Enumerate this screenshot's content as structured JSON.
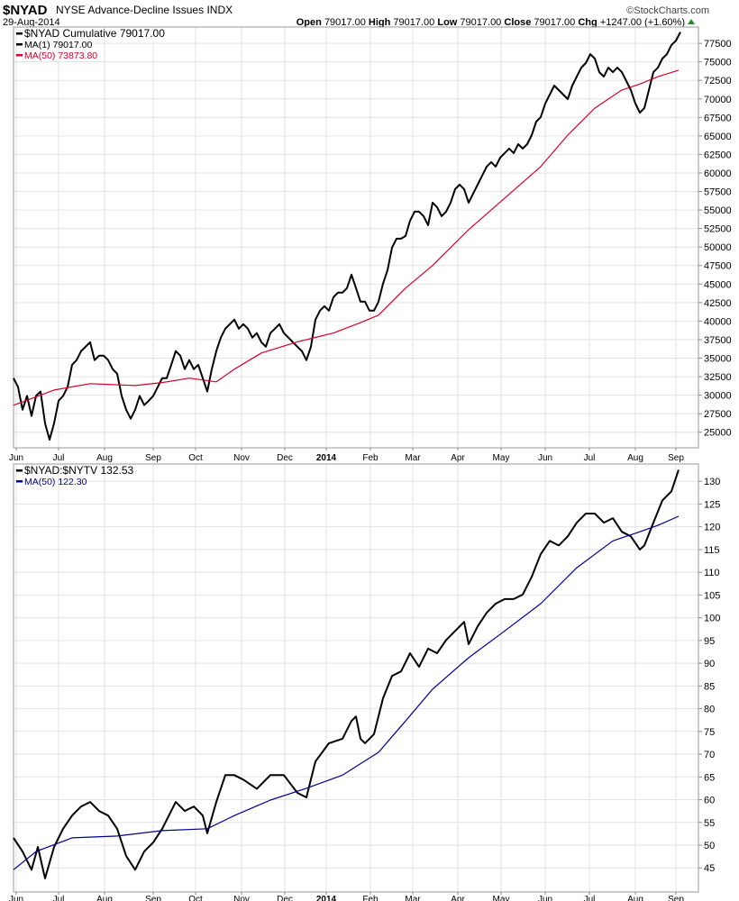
{
  "header": {
    "symbol": "$NYAD",
    "name": "NYSE Advance-Decline Issues",
    "exchange": "INDX",
    "date": "29-Aug-2014",
    "watermark": "©StockCharts.com",
    "open_label": "Open",
    "open": "79017.00",
    "high_label": "High",
    "high": "79017.00",
    "low_label": "Low",
    "low": "79017.00",
    "close_label": "Close",
    "close": "79017.00",
    "chg_label": "Chg",
    "chg": "+1247.00 (+1.60%)"
  },
  "colors": {
    "price": "#000000",
    "ma_top": "#d4002a",
    "ma_bottom": "#00008b",
    "up": "#2a8a2a"
  },
  "chart_data": [
    {
      "type": "line",
      "title": "$NYAD NYSE Advance-Decline Issues INDX",
      "legend": [
        "$NYAD Cumulative 79017.00",
        "MA(1) 79017.00",
        "MA(50) 73873.80"
      ],
      "legend_placement": "top-left",
      "grid": true,
      "ylim": [
        22900,
        79700
      ],
      "yticks": [
        25000,
        27500,
        30000,
        32500,
        35000,
        37500,
        40000,
        42500,
        45000,
        47500,
        50000,
        52500,
        55000,
        57500,
        60000,
        62500,
        65000,
        67500,
        70000,
        72500,
        75000,
        77500
      ],
      "xlim": [
        0,
        152
      ],
      "series": [
        {
          "name": "$NYAD Cumulative",
          "values": [
            32300,
            31100,
            28050,
            29900,
            27200,
            29900,
            30500,
            26200,
            24000,
            26200,
            29250,
            29900,
            31100,
            34100,
            34730,
            35950,
            36550,
            37160,
            34730,
            35340,
            35340,
            34730,
            33520,
            32900,
            29900,
            28050,
            26830,
            28050,
            29900,
            28660,
            29250,
            29900,
            31100,
            32300,
            32300,
            34100,
            35950,
            35340,
            33520,
            34730,
            33520,
            34100,
            32300,
            30500,
            33520,
            35950,
            37770,
            38980,
            39590,
            40200,
            38980,
            39590,
            38980,
            37770,
            38380,
            37160,
            36550,
            38380,
            38980,
            39590,
            38380,
            37770,
            37160,
            36550,
            35950,
            34730,
            36550,
            40200,
            41410,
            42020,
            41410,
            43240,
            43850,
            43850,
            44450,
            46280,
            44450,
            42630,
            42630,
            41410,
            41410,
            42630,
            45060,
            46880,
            49920,
            51130,
            51130,
            51500,
            53560,
            54780,
            54780,
            54170,
            52960,
            55990,
            55390,
            54170,
            54780,
            55990,
            57820,
            58430,
            57820,
            55990,
            57210,
            58430,
            59640,
            60860,
            61470,
            60860,
            62070,
            62680,
            63290,
            62680,
            63890,
            63290,
            63890,
            65110,
            66930,
            67540,
            69370,
            70580,
            71790,
            71190,
            70580,
            69970,
            71790,
            73010,
            74220,
            74830,
            76040,
            75440,
            73610,
            73010,
            74220,
            73610,
            74220,
            73610,
            72400,
            71190,
            69370,
            68150,
            68760,
            71190,
            73610,
            74220,
            75440,
            76040,
            77260,
            77860,
            79017
          ]
        },
        {
          "name": "MA(50)",
          "points": [
            [
              0,
              28640
            ],
            [
              9,
              30700
            ],
            [
              17,
              31560
            ],
            [
              27,
              31300
            ],
            [
              33,
              31700
            ],
            [
              39,
              32300
            ],
            [
              45,
              31800
            ],
            [
              49,
              33500
            ],
            [
              55,
              35700
            ],
            [
              63,
              37200
            ],
            [
              67,
              37800
            ],
            [
              71,
              38400
            ],
            [
              77,
              39800
            ],
            [
              81,
              40800
            ],
            [
              87,
              44450
            ],
            [
              93,
              47500
            ],
            [
              101,
              52340
            ],
            [
              109,
              56600
            ],
            [
              117,
              60860
            ],
            [
              123,
              65100
            ],
            [
              129,
              68750
            ],
            [
              135,
              71200
            ],
            [
              139,
              72000
            ],
            [
              143,
              73000
            ],
            [
              147.6,
              73873.8
            ]
          ]
        }
      ]
    },
    {
      "type": "line",
      "title": "$NYAD:$NYTV",
      "legend": [
        "$NYAD:$NYTV 132.53",
        "MA(50) 122.30"
      ],
      "legend_placement": "top-left",
      "grid": true,
      "ylim": [
        39.7,
        133.8
      ],
      "yticks": [
        45,
        50,
        55,
        60,
        65,
        70,
        75,
        80,
        85,
        90,
        95,
        100,
        105,
        110,
        115,
        120,
        125,
        130
      ],
      "xlim": [
        0,
        152
      ],
      "series": [
        {
          "name": "$NYAD:$NYTV",
          "points": [
            [
              0,
              51.6
            ],
            [
              2,
              48.6
            ],
            [
              4,
              44.6
            ],
            [
              5.4,
              49.6
            ],
            [
              7,
              42.7
            ],
            [
              9,
              49.6
            ],
            [
              11,
              53.6
            ],
            [
              13,
              56.5
            ],
            [
              15,
              58.5
            ],
            [
              17,
              59.5
            ],
            [
              19,
              57.5
            ],
            [
              21,
              56.5
            ],
            [
              23,
              53.6
            ],
            [
              25,
              47.6
            ],
            [
              27,
              44.6
            ],
            [
              29,
              48.6
            ],
            [
              31,
              50.6
            ],
            [
              33,
              53.6
            ],
            [
              36,
              59.5
            ],
            [
              38,
              57.5
            ],
            [
              40,
              58.5
            ],
            [
              42,
              56.5
            ],
            [
              43,
              52.6
            ],
            [
              45,
              59.5
            ],
            [
              47,
              65.4
            ],
            [
              49,
              65.4
            ],
            [
              51,
              64.4
            ],
            [
              54,
              62.4
            ],
            [
              57,
              65.4
            ],
            [
              60,
              65.4
            ],
            [
              63,
              61.5
            ],
            [
              65,
              60.5
            ],
            [
              67,
              68.4
            ],
            [
              70,
              72.4
            ],
            [
              73,
              73.4
            ],
            [
              75,
              77.3
            ],
            [
              76,
              78.3
            ],
            [
              77,
              73.4
            ],
            [
              78,
              72.4
            ],
            [
              80,
              74.4
            ],
            [
              82,
              82.3
            ],
            [
              84,
              87.2
            ],
            [
              86,
              88.2
            ],
            [
              88,
              92.2
            ],
            [
              90,
              89.2
            ],
            [
              92,
              93.2
            ],
            [
              94,
              92.2
            ],
            [
              96,
              95.1
            ],
            [
              98,
              97.1
            ],
            [
              100,
              99.1
            ],
            [
              101,
              94.2
            ],
            [
              103,
              98.1
            ],
            [
              105,
              101.1
            ],
            [
              107,
              103.1
            ],
            [
              109,
              104.1
            ],
            [
              111,
              104.1
            ],
            [
              113,
              105.1
            ],
            [
              115,
              109.0
            ],
            [
              117,
              114.0
            ],
            [
              119,
              116.9
            ],
            [
              121,
              115.9
            ],
            [
              123,
              117.9
            ],
            [
              125,
              120.9
            ],
            [
              127,
              122.9
            ],
            [
              129,
              122.9
            ],
            [
              131,
              120.9
            ],
            [
              133,
              121.9
            ],
            [
              135,
              118.9
            ],
            [
              137,
              117.9
            ],
            [
              139,
              115.0
            ],
            [
              140,
              115.9
            ],
            [
              142,
              120.9
            ],
            [
              144,
              125.8
            ],
            [
              146,
              127.8
            ],
            [
              147.6,
              132.53
            ]
          ]
        },
        {
          "name": "MA(50)",
          "points": [
            [
              0,
              44.6
            ],
            [
              5,
              48.6
            ],
            [
              13,
              51.6
            ],
            [
              23,
              52
            ],
            [
              33,
              53.2
            ],
            [
              43,
              53.6
            ],
            [
              49,
              56.5
            ],
            [
              57,
              59.9
            ],
            [
              65,
              62.5
            ],
            [
              73,
              65.4
            ],
            [
              81,
              70.4
            ],
            [
              87,
              77.3
            ],
            [
              93,
              84.3
            ],
            [
              101,
              91.2
            ],
            [
              109,
              97.1
            ],
            [
              117,
              103.1
            ],
            [
              125,
              111
            ],
            [
              133,
              116.9
            ],
            [
              139,
              118.9
            ],
            [
              143,
              120.3
            ],
            [
              147.6,
              122.3
            ]
          ]
        }
      ]
    }
  ],
  "x_axis": {
    "labels": [
      "Jun",
      "Jul",
      "Aug",
      "Sep",
      "Oct",
      "Nov",
      "Dec",
      "2014",
      "Feb",
      "Mar",
      "Apr",
      "May",
      "Jun",
      "Jul",
      "Aug",
      "Sep"
    ],
    "positions": [
      0.6,
      10,
      20.2,
      31,
      40.4,
      50.6,
      60.2,
      69.4,
      79.2,
      88.6,
      98.6,
      108.2,
      118,
      127.8,
      138,
      147
    ]
  }
}
